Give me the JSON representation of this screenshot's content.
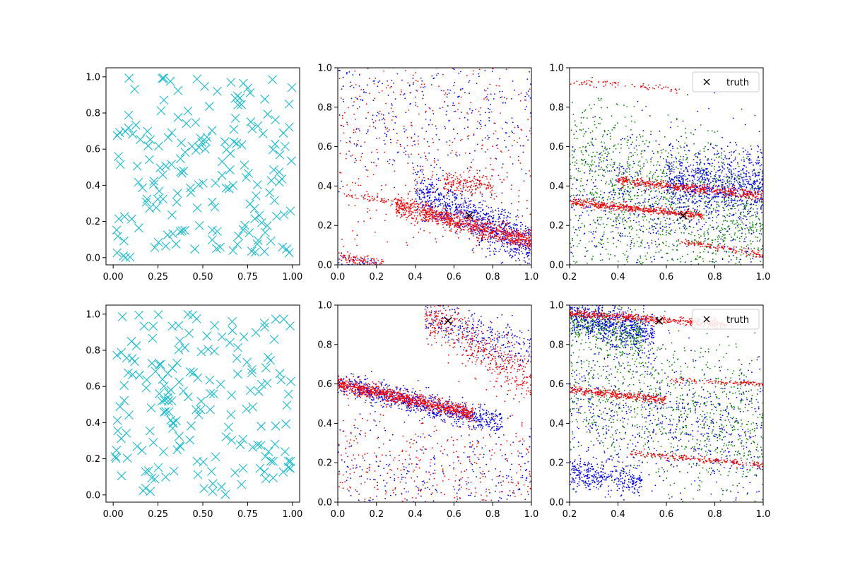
{
  "chart_data": [
    {
      "type": "scatter",
      "panel": "top-left",
      "xlim": [
        -0.04,
        1.04
      ],
      "ylim": [
        -0.04,
        1.05
      ],
      "xticks": [
        "0.00",
        "0.25",
        "0.50",
        "0.75",
        "1.00"
      ],
      "yticks": [
        "0.0",
        "0.2",
        "0.4",
        "0.6",
        "0.8",
        "1.0"
      ],
      "grid": false,
      "series": [
        {
          "marker": "x",
          "color": "#17becf",
          "distribution": "uniform",
          "count": 180,
          "seed": 11
        }
      ]
    },
    {
      "type": "scatter",
      "panel": "top-middle",
      "xlim": [
        0,
        1
      ],
      "ylim": [
        0,
        1
      ],
      "xticks": [
        "0.0",
        "0.2",
        "0.4",
        "0.6",
        "0.8",
        "1.0"
      ],
      "yticks": [
        "0.0",
        "0.2",
        "0.4",
        "0.6",
        "0.8",
        "1.0"
      ],
      "grid": false,
      "series": [
        {
          "marker": "dot",
          "color": "#0000ff",
          "seed": 21,
          "bands": [
            {
              "x": [
                0.4,
                1.0
              ],
              "y0": 0.38,
              "y1": 0.1,
              "spread": 0.06,
              "count": 900
            },
            {
              "x": [
                0.0,
                1.0
              ],
              "y0": 0.8,
              "y1": 0.8,
              "spread": 0.22,
              "count": 450
            },
            {
              "x": [
                0.0,
                0.2
              ],
              "y0": 0.02,
              "y1": 0.0,
              "spread": 0.02,
              "count": 60
            }
          ]
        },
        {
          "marker": "dot",
          "color": "#ff0000",
          "seed": 22,
          "bands": [
            {
              "x": [
                0.3,
                1.0
              ],
              "y0": 0.3,
              "y1": 0.12,
              "spread": 0.025,
              "count": 900
            },
            {
              "x": [
                0.55,
                0.8
              ],
              "y0": 0.42,
              "y1": 0.4,
              "spread": 0.03,
              "count": 150
            },
            {
              "x": [
                0.0,
                1.0
              ],
              "y0": 0.65,
              "y1": 0.65,
              "spread": 0.3,
              "count": 400
            },
            {
              "x": [
                0.0,
                0.25
              ],
              "y0": 0.04,
              "y1": 0.0,
              "spread": 0.015,
              "count": 100
            },
            {
              "x": [
                0.0,
                0.4
              ],
              "y0": 0.37,
              "y1": 0.3,
              "spread": 0.01,
              "count": 60
            }
          ]
        }
      ],
      "truth": {
        "x": 0.68,
        "y": 0.25
      }
    },
    {
      "type": "scatter",
      "panel": "top-right",
      "xlim": [
        0.2,
        1
      ],
      "ylim": [
        0,
        1
      ],
      "xticks": [
        "0.2",
        "0.4",
        "0.6",
        "0.8",
        "1.0"
      ],
      "yticks": [
        "0.0",
        "0.2",
        "0.4",
        "0.6",
        "0.8",
        "1.0"
      ],
      "grid": false,
      "legend": {
        "label": "truth",
        "loc": "upper right"
      },
      "series": [
        {
          "marker": "dot",
          "color": "#008000",
          "seed": 31,
          "bands": [
            {
              "x": [
                0.2,
                1.0
              ],
              "y0": 0.55,
              "y1": 0.25,
              "spread": 0.16,
              "count": 1000
            },
            {
              "x": [
                0.2,
                1.0
              ],
              "y0": 0.1,
              "y1": 0.1,
              "spread": 0.1,
              "count": 300
            }
          ]
        },
        {
          "marker": "dot",
          "color": "#0000ff",
          "seed": 32,
          "bands": [
            {
              "x": [
                0.6,
                1.0
              ],
              "y0": 0.42,
              "y1": 0.4,
              "spread": 0.08,
              "count": 700
            },
            {
              "x": [
                0.2,
                1.0
              ],
              "y0": 0.3,
              "y1": 0.3,
              "spread": 0.2,
              "count": 700
            }
          ]
        },
        {
          "marker": "dot",
          "color": "#ff0000",
          "seed": 33,
          "bands": [
            {
              "x": [
                0.4,
                1.0
              ],
              "y0": 0.43,
              "y1": 0.35,
              "spread": 0.012,
              "count": 450
            },
            {
              "x": [
                0.2,
                0.75
              ],
              "y0": 0.32,
              "y1": 0.25,
              "spread": 0.01,
              "count": 450
            },
            {
              "x": [
                0.2,
                0.65
              ],
              "y0": 0.93,
              "y1": 0.89,
              "spread": 0.01,
              "count": 70
            },
            {
              "x": [
                0.65,
                1.0
              ],
              "y0": 0.12,
              "y1": 0.05,
              "spread": 0.008,
              "count": 120
            }
          ]
        }
      ],
      "truth": {
        "x": 0.67,
        "y": 0.25
      }
    },
    {
      "type": "scatter",
      "panel": "bottom-left",
      "xlim": [
        -0.04,
        1.04
      ],
      "ylim": [
        -0.04,
        1.05
      ],
      "xticks": [
        "0.00",
        "0.25",
        "0.50",
        "0.75",
        "1.00"
      ],
      "yticks": [
        "0.0",
        "0.2",
        "0.4",
        "0.6",
        "0.8",
        "1.0"
      ],
      "grid": false,
      "series": [
        {
          "marker": "x",
          "color": "#17becf",
          "distribution": "uniform",
          "count": 180,
          "seed": 41
        }
      ]
    },
    {
      "type": "scatter",
      "panel": "bottom-middle",
      "xlim": [
        0,
        1
      ],
      "ylim": [
        0,
        1
      ],
      "xticks": [
        "0.0",
        "0.2",
        "0.4",
        "0.6",
        "0.8",
        "1.0"
      ],
      "yticks": [
        "0.0",
        "0.2",
        "0.4",
        "0.6",
        "0.8",
        "1.0"
      ],
      "grid": false,
      "series": [
        {
          "marker": "dot",
          "color": "#0000ff",
          "seed": 51,
          "bands": [
            {
              "x": [
                0.0,
                0.85
              ],
              "y0": 0.6,
              "y1": 0.4,
              "spread": 0.03,
              "count": 800
            },
            {
              "x": [
                0.45,
                1.0
              ],
              "y0": 0.95,
              "y1": 0.75,
              "spread": 0.06,
              "count": 300
            },
            {
              "x": [
                0.0,
                1.0
              ],
              "y0": 0.15,
              "y1": 0.15,
              "spread": 0.15,
              "count": 350
            }
          ]
        },
        {
          "marker": "dot",
          "color": "#ff0000",
          "seed": 52,
          "bands": [
            {
              "x": [
                0.0,
                0.7
              ],
              "y0": 0.6,
              "y1": 0.45,
              "spread": 0.018,
              "count": 900
            },
            {
              "x": [
                0.45,
                1.0
              ],
              "y0": 0.96,
              "y1": 0.6,
              "spread": 0.07,
              "count": 450
            },
            {
              "x": [
                0.0,
                1.0
              ],
              "y0": 0.18,
              "y1": 0.18,
              "spread": 0.15,
              "count": 350
            }
          ]
        }
      ],
      "truth": {
        "x": 0.57,
        "y": 0.92
      }
    },
    {
      "type": "scatter",
      "panel": "bottom-right",
      "xlim": [
        0.2,
        1
      ],
      "ylim": [
        0,
        1
      ],
      "xticks": [
        "0.2",
        "0.4",
        "0.6",
        "0.8",
        "1.0"
      ],
      "yticks": [
        "0.0",
        "0.2",
        "0.4",
        "0.6",
        "0.8",
        "1.0"
      ],
      "grid": false,
      "legend": {
        "label": "truth",
        "loc": "upper right"
      },
      "series": [
        {
          "marker": "dot",
          "color": "#008000",
          "seed": 61,
          "bands": [
            {
              "x": [
                0.2,
                0.5
              ],
              "y0": 0.92,
              "y1": 0.85,
              "spread": 0.05,
              "count": 400
            },
            {
              "x": [
                0.2,
                1.0
              ],
              "y0": 0.6,
              "y1": 0.35,
              "spread": 0.2,
              "count": 900
            }
          ]
        },
        {
          "marker": "dot",
          "color": "#0000ff",
          "seed": 62,
          "bands": [
            {
              "x": [
                0.2,
                0.55
              ],
              "y0": 0.95,
              "y1": 0.85,
              "spread": 0.05,
              "count": 600
            },
            {
              "x": [
                0.2,
                0.5
              ],
              "y0": 0.15,
              "y1": 0.1,
              "spread": 0.04,
              "count": 350
            },
            {
              "x": [
                0.2,
                1.0
              ],
              "y0": 0.55,
              "y1": 0.3,
              "spread": 0.18,
              "count": 700
            }
          ]
        },
        {
          "marker": "dot",
          "color": "#ff0000",
          "seed": 63,
          "bands": [
            {
              "x": [
                0.2,
                0.85
              ],
              "y0": 0.96,
              "y1": 0.9,
              "spread": 0.01,
              "count": 450
            },
            {
              "x": [
                0.2,
                0.6
              ],
              "y0": 0.57,
              "y1": 0.52,
              "spread": 0.01,
              "count": 300
            },
            {
              "x": [
                0.6,
                1.0
              ],
              "y0": 0.62,
              "y1": 0.6,
              "spread": 0.006,
              "count": 100
            },
            {
              "x": [
                0.45,
                1.0
              ],
              "y0": 0.25,
              "y1": 0.19,
              "spread": 0.008,
              "count": 200
            }
          ]
        }
      ],
      "truth": {
        "x": 0.57,
        "y": 0.92
      }
    }
  ]
}
